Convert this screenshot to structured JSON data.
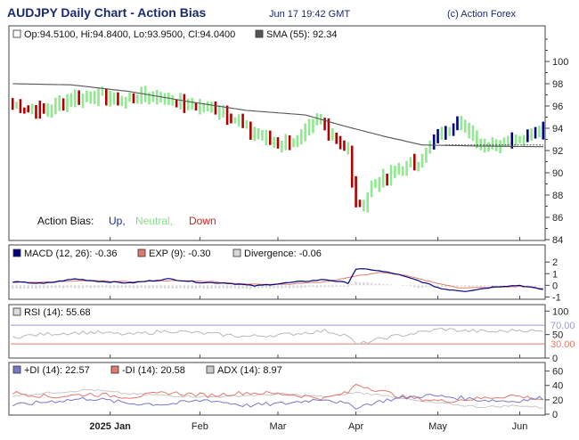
{
  "header": {
    "title": "AUDJPY Daily Chart - Action Bias",
    "timestamp": "Jun 17 19:42 GMT",
    "copyright": "(c) Action Forex"
  },
  "colors": {
    "up": "#000080",
    "down": "#b00000",
    "neutral": "#90e890",
    "sma": "#555555",
    "macd": "#000080",
    "exp": "#e07a6a",
    "divergence": "#d8d8d8",
    "rsi": "#b8b8b8",
    "rsi_upper": "#9999cc",
    "rsi_lower": "#e07a6a",
    "plus_di": "#7777cc",
    "minus_di": "#e07a6a",
    "adx": "#c8c8c8"
  },
  "chart_data": [
    {
      "type": "candlestick",
      "panel": "price",
      "info": "Op:94.5100, Hi:94.8400, Lo:93.9500, Cl:94.0400",
      "sma_label": "SMA (55): 92.34",
      "ylim": [
        84,
        102
      ],
      "yticks": [
        84,
        86,
        88,
        90,
        92,
        94,
        96,
        98,
        100
      ],
      "legend": {
        "label": "Action Bias:",
        "up": "Up,",
        "neutral": "Neutral,",
        "down": "Down"
      },
      "last_close": 94.04,
      "reference_level": 92.5,
      "series": [
        {
          "name": "price",
          "anchors": [
            [
              0,
              96.0
            ],
            [
              8,
              95.5
            ],
            [
              14,
              96.5
            ],
            [
              20,
              97.0
            ],
            [
              28,
              96.5
            ],
            [
              36,
              97.0
            ],
            [
              44,
              96.2
            ],
            [
              52,
              95.8
            ],
            [
              56,
              95.0
            ],
            [
              62,
              93.5
            ],
            [
              68,
              92.6
            ],
            [
              74,
              93.0
            ],
            [
              78,
              94.8
            ],
            [
              82,
              93.5
            ],
            [
              86,
              92.0
            ],
            [
              87,
              89.0
            ],
            [
              88,
              87.5
            ],
            [
              89,
              86.8
            ],
            [
              90,
              87.3
            ],
            [
              92,
              89.0
            ],
            [
              96,
              89.5
            ],
            [
              100,
              90.5
            ],
            [
              104,
              91.0
            ],
            [
              106,
              91.8
            ],
            [
              108,
              93.0
            ],
            [
              112,
              93.8
            ],
            [
              114,
              95.0
            ],
            [
              118,
              93.0
            ],
            [
              122,
              92.5
            ],
            [
              126,
              92.8
            ],
            [
              130,
              93.2
            ],
            [
              134,
              93.7
            ],
            [
              136,
              94.0
            ]
          ]
        },
        {
          "name": "SMA (55)",
          "anchors": [
            [
              0,
              98.0
            ],
            [
              15,
              97.9
            ],
            [
              30,
              97.3
            ],
            [
              45,
              96.4
            ],
            [
              60,
              95.6
            ],
            [
              75,
              95.2
            ],
            [
              85,
              94.2
            ],
            [
              95,
              93.3
            ],
            [
              105,
              92.5
            ],
            [
              120,
              92.4
            ],
            [
              136,
              92.34
            ]
          ]
        }
      ]
    },
    {
      "type": "line",
      "panel": "macd",
      "labels": {
        "macd": "MACD (12, 26): -0.36",
        "exp": "EXP (9): -0.30",
        "divergence": "Divergence: -0.06"
      },
      "ylim": [
        -1.2,
        2.4
      ],
      "yticks": [
        -1,
        0,
        1,
        2
      ],
      "series": [
        {
          "name": "MACD (12, 26)",
          "anchors": [
            [
              0,
              0.3
            ],
            [
              8,
              0.15
            ],
            [
              16,
              0.55
            ],
            [
              22,
              0.35
            ],
            [
              30,
              0.2
            ],
            [
              40,
              0.55
            ],
            [
              48,
              0.25
            ],
            [
              55,
              0.2
            ],
            [
              62,
              -0.05
            ],
            [
              70,
              0.2
            ],
            [
              80,
              0.5
            ],
            [
              86,
              0.2
            ],
            [
              88,
              1.4
            ],
            [
              92,
              1.35
            ],
            [
              98,
              1.0
            ],
            [
              104,
              0.4
            ],
            [
              110,
              -0.3
            ],
            [
              116,
              -0.5
            ],
            [
              124,
              -0.1
            ],
            [
              130,
              0.0
            ],
            [
              136,
              -0.36
            ]
          ]
        },
        {
          "name": "EXP (9)",
          "anchors": [
            [
              0,
              0.25
            ],
            [
              10,
              0.3
            ],
            [
              20,
              0.4
            ],
            [
              30,
              0.3
            ],
            [
              40,
              0.4
            ],
            [
              50,
              0.35
            ],
            [
              60,
              0.1
            ],
            [
              70,
              0.1
            ],
            [
              80,
              0.3
            ],
            [
              88,
              0.8
            ],
            [
              94,
              1.1
            ],
            [
              100,
              0.9
            ],
            [
              106,
              0.4
            ],
            [
              114,
              -0.2
            ],
            [
              122,
              -0.2
            ],
            [
              130,
              -0.1
            ],
            [
              136,
              -0.3
            ]
          ]
        },
        {
          "name": "Divergence",
          "anchors": [
            [
              0,
              -0.3
            ],
            [
              20,
              -0.2
            ],
            [
              40,
              -0.25
            ],
            [
              60,
              -0.3
            ],
            [
              86,
              -0.1
            ],
            [
              88,
              0.3
            ],
            [
              96,
              0.1
            ],
            [
              104,
              -0.2
            ],
            [
              120,
              -0.1
            ],
            [
              136,
              -0.06
            ]
          ]
        }
      ]
    },
    {
      "type": "line",
      "panel": "rsi",
      "label": "RSI (14): 55.68",
      "ylim": [
        0,
        110
      ],
      "yticks": [
        0,
        30,
        50,
        70,
        100
      ],
      "levels": {
        "upper": "70.00",
        "lower": "30.00"
      },
      "series": [
        {
          "name": "RSI (14)",
          "anchors": [
            [
              0,
              45
            ],
            [
              10,
              52
            ],
            [
              20,
              55
            ],
            [
              30,
              50
            ],
            [
              40,
              58
            ],
            [
              50,
              52
            ],
            [
              60,
              46
            ],
            [
              70,
              50
            ],
            [
              80,
              58
            ],
            [
              86,
              48
            ],
            [
              88,
              28
            ],
            [
              90,
              32
            ],
            [
              96,
              44
            ],
            [
              104,
              54
            ],
            [
              110,
              62
            ],
            [
              116,
              58
            ],
            [
              124,
              56
            ],
            [
              130,
              60
            ],
            [
              136,
              55.68
            ]
          ]
        }
      ]
    },
    {
      "type": "line",
      "panel": "dmi",
      "labels": {
        "plus_di": "+DI (14): 22.57",
        "minus_di": "-DI (14): 20.58",
        "adx": "ADX (14): 8.97"
      },
      "ylim": [
        0,
        62
      ],
      "yticks": [
        0,
        20,
        40,
        60
      ],
      "series": [
        {
          "name": "+DI (14)",
          "anchors": [
            [
              0,
              12
            ],
            [
              10,
              18
            ],
            [
              20,
              22
            ],
            [
              30,
              15
            ],
            [
              40,
              14
            ],
            [
              50,
              20
            ],
            [
              60,
              12
            ],
            [
              70,
              15
            ],
            [
              80,
              22
            ],
            [
              88,
              10
            ],
            [
              96,
              20
            ],
            [
              106,
              26
            ],
            [
              112,
              24
            ],
            [
              120,
              20
            ],
            [
              128,
              18
            ],
            [
              136,
              22.57
            ]
          ]
        },
        {
          "name": "-DI (14)",
          "anchors": [
            [
              0,
              30
            ],
            [
              10,
              24
            ],
            [
              20,
              28
            ],
            [
              30,
              24
            ],
            [
              40,
              30
            ],
            [
              50,
              26
            ],
            [
              60,
              30
            ],
            [
              70,
              28
            ],
            [
              80,
              22
            ],
            [
              86,
              30
            ],
            [
              88,
              42
            ],
            [
              92,
              36
            ],
            [
              100,
              24
            ],
            [
              110,
              18
            ],
            [
              120,
              22
            ],
            [
              128,
              26
            ],
            [
              136,
              20.58
            ]
          ]
        },
        {
          "name": "ADX (14)",
          "anchors": [
            [
              0,
              26
            ],
            [
              10,
              30
            ],
            [
              20,
              34
            ],
            [
              30,
              28
            ],
            [
              40,
              26
            ],
            [
              50,
              24
            ],
            [
              60,
              26
            ],
            [
              70,
              28
            ],
            [
              80,
              24
            ],
            [
              88,
              30
            ],
            [
              96,
              26
            ],
            [
              104,
              18
            ],
            [
              112,
              14
            ],
            [
              120,
              10
            ],
            [
              130,
              12
            ],
            [
              136,
              8.97
            ]
          ]
        }
      ]
    }
  ],
  "xaxis": {
    "ticks": [
      {
        "label": "2025 Jan",
        "bar": 25,
        "bold": true
      },
      {
        "label": "Feb",
        "bar": 48,
        "bold": false
      },
      {
        "label": "Mar",
        "bar": 68,
        "bold": false
      },
      {
        "label": "Apr",
        "bar": 88,
        "bold": false
      },
      {
        "label": "May",
        "bar": 109,
        "bold": false
      },
      {
        "label": "Jun",
        "bar": 130,
        "bold": false
      }
    ]
  }
}
